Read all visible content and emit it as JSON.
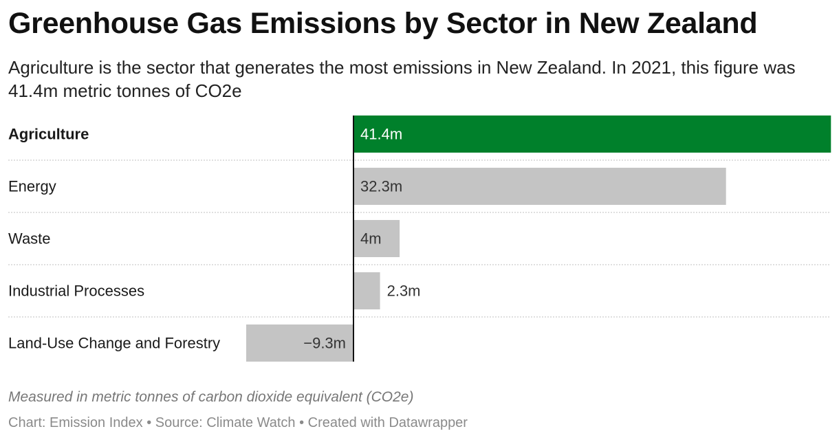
{
  "title": "Greenhouse Gas Emissions by Sector in New Zealand",
  "subtitle": "Agriculture is the sector that generates the most emissions in New Zealand. In 2021, this figure was 41.4m metric tonnes of CO2e",
  "note": "Measured in metric tonnes of carbon dioxide equivalent (CO2e)",
  "source": "Chart: Emission Index • Source: Climate Watch • Created with Datawrapper",
  "colors": {
    "highlight": "#00802b",
    "default_bar": "#c4c4c4",
    "axis": "#111111",
    "separator": "#cccccc"
  },
  "chart_data": {
    "type": "bar",
    "orientation": "horizontal",
    "categories": [
      "Agriculture",
      "Energy",
      "Waste",
      "Industrial Processes",
      "Land-Use Change and Forestry"
    ],
    "values": [
      41.4,
      32.3,
      4,
      2.3,
      -9.3
    ],
    "value_labels": [
      "41.4m",
      "32.3m",
      "4m",
      "2.3m",
      "−9.3m"
    ],
    "highlighted": [
      "Agriculture"
    ],
    "unit": "million metric tonnes CO2e",
    "xlim": [
      -9.3,
      41.4
    ],
    "grid": false
  }
}
